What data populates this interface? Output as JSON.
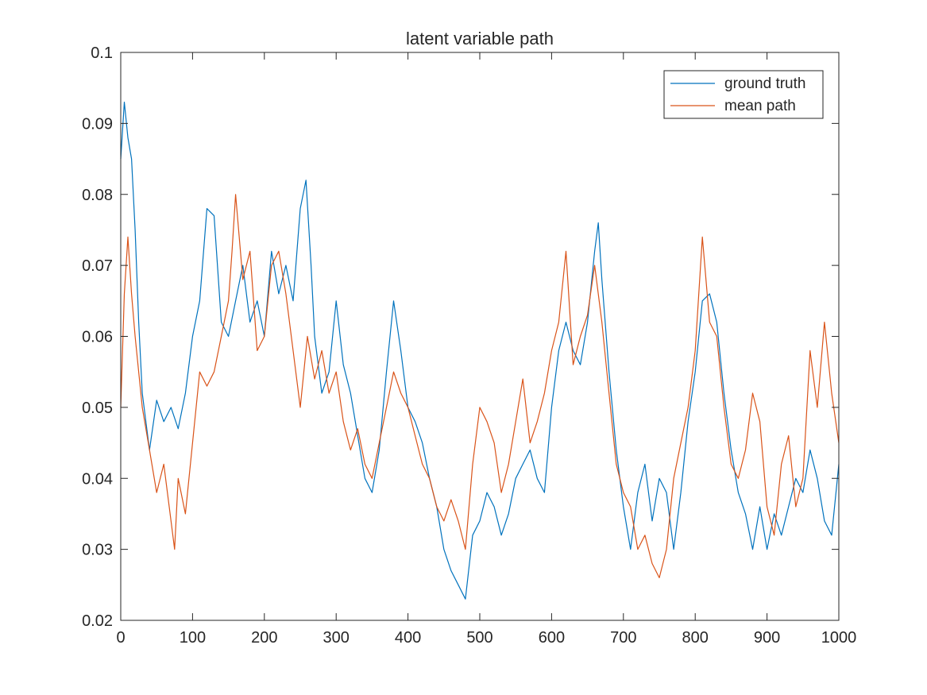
{
  "chart_data": {
    "type": "line",
    "title": "latent variable path",
    "xlabel": "",
    "ylabel": "",
    "xlim": [
      0,
      1000
    ],
    "ylim": [
      0.02,
      0.1
    ],
    "xticks": [
      0,
      100,
      200,
      300,
      400,
      500,
      600,
      700,
      800,
      900,
      1000
    ],
    "xtick_labels": [
      "0",
      "100",
      "200",
      "300",
      "400",
      "500",
      "600",
      "700",
      "800",
      "900",
      "1000"
    ],
    "yticks": [
      0.02,
      0.03,
      0.04,
      0.05,
      0.06,
      0.07,
      0.08,
      0.09,
      0.1
    ],
    "ytick_labels": [
      "0.02",
      "0.03",
      "0.04",
      "0.05",
      "0.06",
      "0.07",
      "0.08",
      "0.09",
      "0.1"
    ],
    "grid": false,
    "legend_position": "top-right",
    "series": [
      {
        "name": "ground truth",
        "color": "#0072BD",
        "x": [
          0,
          5,
          10,
          15,
          20,
          25,
          30,
          40,
          50,
          60,
          70,
          80,
          90,
          100,
          110,
          120,
          130,
          140,
          150,
          160,
          170,
          180,
          190,
          200,
          210,
          220,
          230,
          240,
          250,
          258,
          265,
          270,
          280,
          290,
          300,
          310,
          320,
          330,
          340,
          350,
          360,
          370,
          380,
          390,
          400,
          410,
          420,
          430,
          440,
          450,
          460,
          470,
          480,
          490,
          500,
          510,
          520,
          530,
          540,
          550,
          560,
          570,
          580,
          590,
          600,
          610,
          620,
          630,
          640,
          650,
          660,
          665,
          670,
          680,
          690,
          700,
          710,
          720,
          730,
          740,
          750,
          760,
          770,
          780,
          790,
          800,
          810,
          820,
          830,
          840,
          850,
          860,
          870,
          880,
          890,
          900,
          910,
          920,
          930,
          940,
          950,
          960,
          970,
          980,
          990,
          1000
        ],
        "y": [
          0.085,
          0.093,
          0.088,
          0.085,
          0.075,
          0.062,
          0.052,
          0.044,
          0.051,
          0.048,
          0.05,
          0.047,
          0.052,
          0.06,
          0.065,
          0.078,
          0.077,
          0.062,
          0.06,
          0.065,
          0.07,
          0.062,
          0.065,
          0.06,
          0.072,
          0.066,
          0.07,
          0.065,
          0.078,
          0.082,
          0.07,
          0.06,
          0.052,
          0.055,
          0.065,
          0.056,
          0.052,
          0.046,
          0.04,
          0.038,
          0.044,
          0.055,
          0.065,
          0.058,
          0.05,
          0.048,
          0.045,
          0.04,
          0.036,
          0.03,
          0.027,
          0.025,
          0.023,
          0.032,
          0.034,
          0.038,
          0.036,
          0.032,
          0.035,
          0.04,
          0.042,
          0.044,
          0.04,
          0.038,
          0.05,
          0.058,
          0.062,
          0.058,
          0.056,
          0.062,
          0.072,
          0.076,
          0.068,
          0.055,
          0.044,
          0.036,
          0.03,
          0.038,
          0.042,
          0.034,
          0.04,
          0.038,
          0.03,
          0.038,
          0.048,
          0.055,
          0.065,
          0.066,
          0.062,
          0.052,
          0.044,
          0.038,
          0.035,
          0.03,
          0.036,
          0.03,
          0.035,
          0.032,
          0.036,
          0.04,
          0.038,
          0.044,
          0.04,
          0.034,
          0.032,
          0.042
        ]
      },
      {
        "name": "mean path",
        "color": "#D95319",
        "x": [
          0,
          5,
          10,
          15,
          20,
          30,
          40,
          50,
          60,
          70,
          75,
          80,
          90,
          100,
          110,
          120,
          130,
          140,
          150,
          155,
          160,
          170,
          180,
          190,
          200,
          210,
          220,
          230,
          240,
          250,
          260,
          270,
          280,
          290,
          300,
          310,
          320,
          330,
          340,
          350,
          360,
          370,
          380,
          390,
          400,
          410,
          420,
          430,
          440,
          450,
          460,
          470,
          480,
          490,
          500,
          510,
          520,
          530,
          540,
          550,
          560,
          570,
          580,
          590,
          600,
          610,
          620,
          630,
          640,
          650,
          660,
          670,
          680,
          690,
          700,
          710,
          720,
          730,
          740,
          750,
          760,
          770,
          780,
          790,
          800,
          810,
          820,
          830,
          840,
          850,
          860,
          870,
          880,
          890,
          900,
          910,
          920,
          930,
          940,
          950,
          960,
          970,
          980,
          990,
          1000
        ],
        "y": [
          0.05,
          0.066,
          0.074,
          0.066,
          0.06,
          0.05,
          0.044,
          0.038,
          0.042,
          0.034,
          0.03,
          0.04,
          0.035,
          0.045,
          0.055,
          0.053,
          0.055,
          0.06,
          0.065,
          0.072,
          0.08,
          0.068,
          0.072,
          0.058,
          0.06,
          0.07,
          0.072,
          0.066,
          0.058,
          0.05,
          0.06,
          0.054,
          0.058,
          0.052,
          0.055,
          0.048,
          0.044,
          0.047,
          0.042,
          0.04,
          0.045,
          0.05,
          0.055,
          0.052,
          0.05,
          0.046,
          0.042,
          0.04,
          0.036,
          0.034,
          0.037,
          0.034,
          0.03,
          0.042,
          0.05,
          0.048,
          0.045,
          0.038,
          0.042,
          0.048,
          0.054,
          0.045,
          0.048,
          0.052,
          0.058,
          0.062,
          0.072,
          0.056,
          0.06,
          0.063,
          0.07,
          0.062,
          0.052,
          0.042,
          0.038,
          0.036,
          0.03,
          0.032,
          0.028,
          0.026,
          0.03,
          0.04,
          0.045,
          0.05,
          0.058,
          0.074,
          0.062,
          0.06,
          0.05,
          0.042,
          0.04,
          0.044,
          0.052,
          0.048,
          0.036,
          0.032,
          0.042,
          0.046,
          0.036,
          0.04,
          0.058,
          0.05,
          0.062,
          0.052,
          0.045
        ]
      }
    ]
  }
}
